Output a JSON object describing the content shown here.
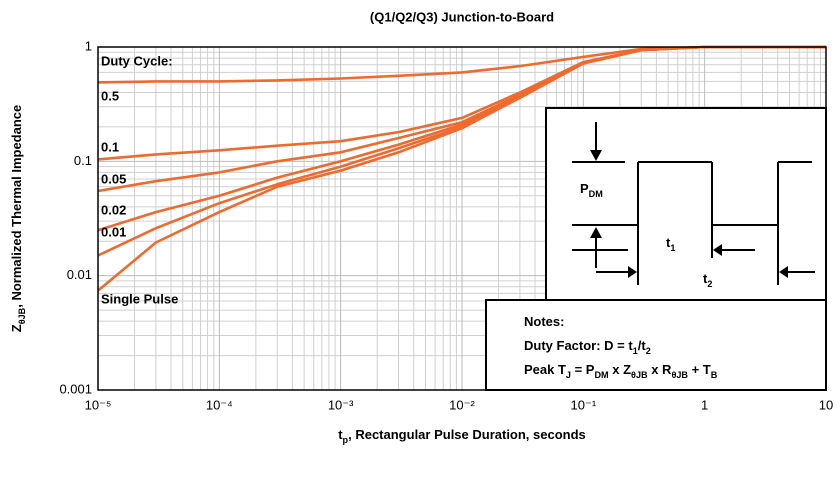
{
  "chart_data": {
    "type": "line",
    "title": "(Q1/Q2/Q3) Junction-to-Board",
    "xlabel": [
      {
        "text": "t"
      },
      {
        "text": "p",
        "sub": true
      },
      {
        "text": ", Rectangular Pulse Duration, seconds"
      }
    ],
    "ylabel": [
      {
        "text": "Z"
      },
      {
        "text": "θJB",
        "sub": true
      },
      {
        "text": ", Normalized Thermal Impedance"
      }
    ],
    "xscale": "log",
    "yscale": "log",
    "grid": true,
    "xlim": [
      1e-05,
      10
    ],
    "ylim": [
      0.001,
      1
    ],
    "xticks": [
      {
        "value": 1e-05,
        "label": "10⁻⁵"
      },
      {
        "value": 0.0001,
        "label": "10⁻⁴"
      },
      {
        "value": 0.001,
        "label": "10⁻³"
      },
      {
        "value": 0.01,
        "label": "10⁻²"
      },
      {
        "value": 0.1,
        "label": "10⁻¹"
      },
      1,
      10
    ],
    "yticks": [
      0.001,
      0.01,
      0.1,
      1
    ],
    "legend_title": "Duty Cycle:",
    "x": [
      1e-05,
      3e-05,
      0.0001,
      0.0003,
      0.001,
      0.003,
      0.01,
      0.03,
      0.1,
      0.3,
      1,
      10
    ],
    "series": [
      {
        "name": "0.5",
        "color": "#ee6a2e",
        "values": [
          0.49,
          0.5,
          0.5,
          0.51,
          0.53,
          0.56,
          0.6,
          0.68,
          0.82,
          0.96,
          1,
          1
        ]
      },
      {
        "name": "0.1",
        "color": "#ee6a2e",
        "values": [
          0.104,
          0.115,
          0.125,
          0.137,
          0.15,
          0.18,
          0.24,
          0.4,
          0.74,
          0.94,
          1,
          1
        ]
      },
      {
        "name": "0.05",
        "color": "#ee6a2e",
        "values": [
          0.055,
          0.067,
          0.08,
          0.1,
          0.12,
          0.16,
          0.22,
          0.38,
          0.73,
          0.94,
          1,
          1
        ]
      },
      {
        "name": "0.02",
        "color": "#ee6a2e",
        "values": [
          0.025,
          0.036,
          0.05,
          0.072,
          0.1,
          0.14,
          0.21,
          0.37,
          0.72,
          0.94,
          1,
          1
        ]
      },
      {
        "name": "0.01",
        "color": "#ee6a2e",
        "values": [
          0.015,
          0.026,
          0.043,
          0.063,
          0.09,
          0.13,
          0.2,
          0.36,
          0.72,
          0.94,
          1,
          1
        ]
      },
      {
        "name": "Single Pulse",
        "color": "#ee6a2e",
        "values": [
          0.0074,
          0.0195,
          0.036,
          0.06,
          0.083,
          0.12,
          0.195,
          0.36,
          0.72,
          0.94,
          1,
          1
        ]
      }
    ],
    "inset": {
      "pdm": [
        {
          "text": "P"
        },
        {
          "text": "DM",
          "sub": true
        }
      ],
      "t1": [
        {
          "text": "t"
        },
        {
          "text": "1",
          "sub": true
        }
      ],
      "t2": [
        {
          "text": "t"
        },
        {
          "text": "2",
          "sub": true
        }
      ]
    },
    "notes": [
      [
        {
          "text": "Notes:"
        }
      ],
      [
        {
          "text": "Duty Factor: D = t"
        },
        {
          "text": "1",
          "sub": true
        },
        {
          "text": "/t"
        },
        {
          "text": "2",
          "sub": true
        }
      ],
      [
        {
          "text": "Peak T"
        },
        {
          "text": "J",
          "sub": true
        },
        {
          "text": " = P"
        },
        {
          "text": "DM",
          "sub": true
        },
        {
          "text": " x Z"
        },
        {
          "text": "θJB",
          "sub": true
        },
        {
          "text": " x R"
        },
        {
          "text": "θJB",
          "sub": true
        },
        {
          "text": " + T"
        },
        {
          "text": "B",
          "sub": true
        }
      ]
    ]
  }
}
